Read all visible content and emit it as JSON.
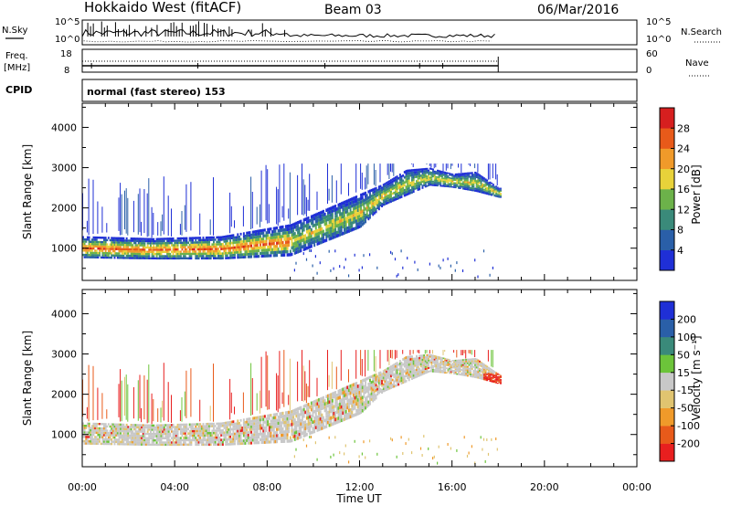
{
  "header": {
    "radar": "Hokkaido West (fitACF)",
    "beam": "Beam 03",
    "date": "06/Mar/2016"
  },
  "params": {
    "nsky_label": "N.Sky",
    "nsearch_label": "N.Search",
    "nsky_ticks": [
      "10^5",
      "10^0"
    ],
    "nsearch_ticks": [
      "10^5",
      "10^0"
    ],
    "freq_label_1": "Freq.",
    "freq_label_2": "[MHz]",
    "freq_ticks": [
      "18",
      "8"
    ],
    "nave_label": "Nave",
    "nave_ticks": [
      "60",
      "0"
    ],
    "cpid_label": "CPID",
    "cpid_text": "normal (fast stereo) 153"
  },
  "colors": {
    "power": [
      "#1f2fd6",
      "#2a5fa8",
      "#3a8a7a",
      "#6cb24a",
      "#e8d23a",
      "#f09a2a",
      "#e85a1a",
      "#d61f1f"
    ],
    "velocity": [
      "#e81f1f",
      "#e85a1a",
      "#f09a2a",
      "#e0c470",
      "#c8c8c8",
      "#6cc43a",
      "#3a8a7a",
      "#2a5fa8",
      "#1f2fd6"
    ]
  },
  "chart_data": [
    {
      "type": "heatmap",
      "name": "power",
      "xlabel": "",
      "ylabel": "Slant Range [km]",
      "yticks": [
        "4000",
        "3000",
        "2000",
        "1000"
      ],
      "ylim": [
        200,
        4600
      ],
      "colorbar_label": "Power [dB]",
      "colorbar_ticks": [
        "28",
        "24",
        "20",
        "16",
        "12",
        "8",
        "4"
      ],
      "bands": [
        {
          "x": [
            0,
            3,
            6,
            9,
            12,
            13,
            14,
            15,
            16,
            17,
            18
          ],
          "lower": [
            750,
            720,
            720,
            800,
            1500,
            2050,
            2300,
            2550,
            2500,
            2400,
            2250
          ],
          "upper": [
            1300,
            1250,
            1300,
            1600,
            2350,
            2600,
            2950,
            3000,
            2850,
            2900,
            2500
          ]
        }
      ]
    },
    {
      "type": "heatmap",
      "name": "velocity",
      "xlabel": "Time UT",
      "ylabel": "Slant Range [km]",
      "xticks": [
        "00:00",
        "04:00",
        "08:00",
        "12:00",
        "16:00",
        "20:00",
        "00:00"
      ],
      "yticks": [
        "4000",
        "3000",
        "2000",
        "1000"
      ],
      "ylim": [
        200,
        4600
      ],
      "colorbar_label": "Velocity [m s⁻¹]",
      "colorbar_ticks": [
        "200",
        "100",
        "50",
        "15",
        "-15",
        "-50",
        "-100",
        "-200"
      ],
      "bands": [
        {
          "x": [
            0,
            3,
            6,
            9,
            12,
            13,
            14,
            15,
            16,
            17,
            18
          ],
          "lower": [
            750,
            720,
            720,
            800,
            1500,
            2050,
            2300,
            2550,
            2500,
            2400,
            2250
          ],
          "upper": [
            1300,
            1250,
            1300,
            1600,
            2350,
            2600,
            2950,
            3000,
            2850,
            2900,
            2500
          ]
        }
      ]
    }
  ]
}
